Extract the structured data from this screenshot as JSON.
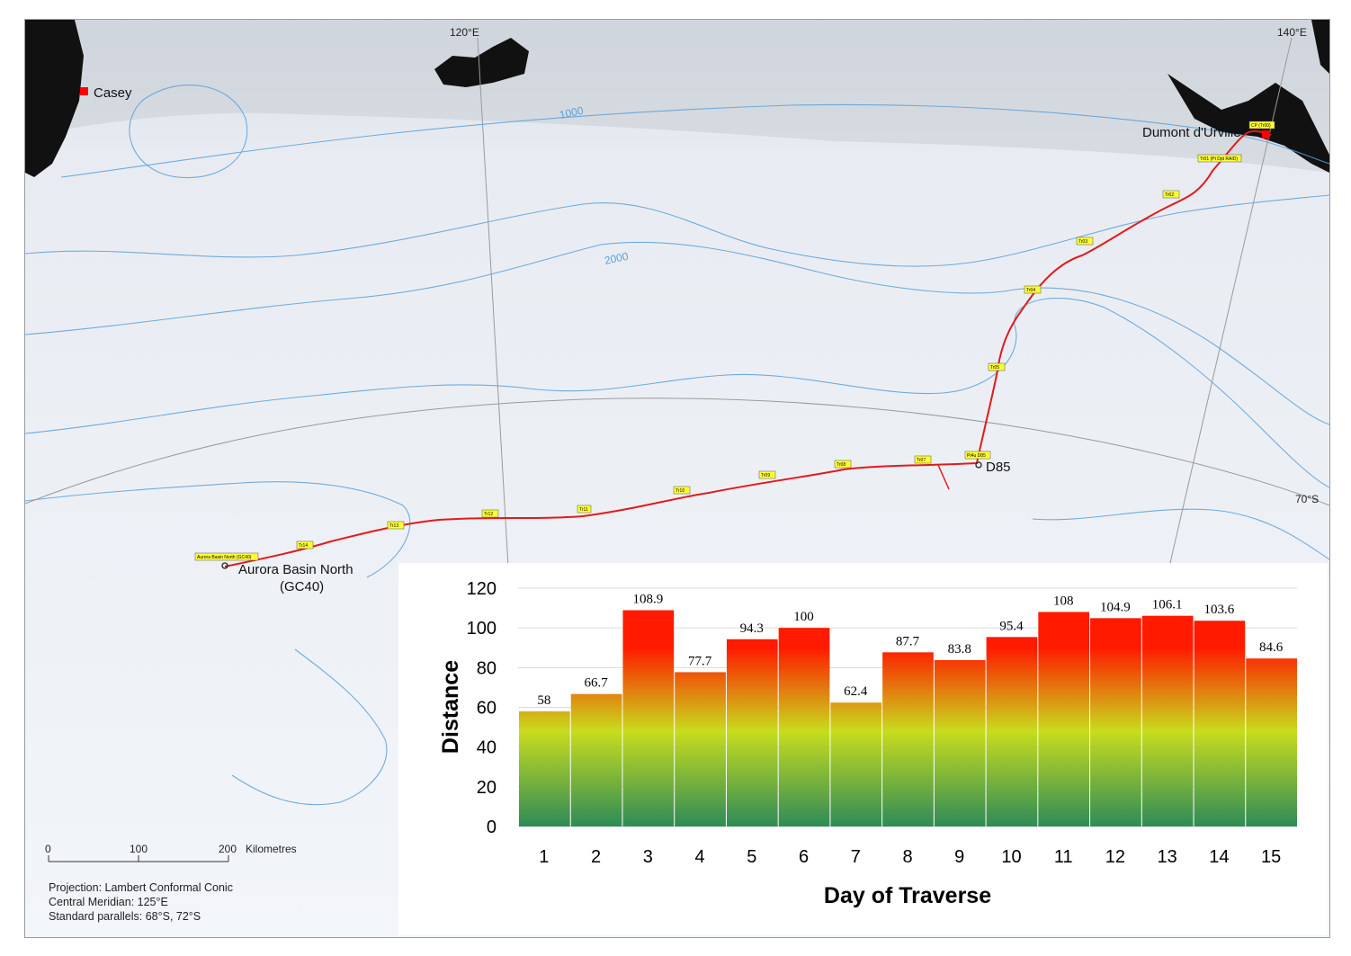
{
  "map": {
    "graticule": {
      "lon_120": "120°E",
      "lon_140": "140°E",
      "lat_70": "70°S"
    },
    "contours": {
      "c1000": "1000",
      "c2000": "2000"
    },
    "stations": {
      "casey": "Casey",
      "dumont": "Dumont d'Urville",
      "d85": "D85",
      "abn_line1": "Aurora Basin North",
      "abn_line2": "(GC40)"
    },
    "flags": [
      "CP (Tr00)",
      "Tr01 (Pt Dpt RAID)",
      "Tr02",
      "Tr03",
      "Tr04",
      "Tr05",
      "Pt4u D85",
      "Tr07",
      "Tr08",
      "Tr09",
      "Tr10",
      "Tr11",
      "Tr12",
      "Tr13",
      "Tr14",
      "Aurora Basin North (GC40)"
    ],
    "scalebar": {
      "t0": "0",
      "t100": "100",
      "t200": "200",
      "unit": "Kilometres"
    },
    "projection": {
      "line1": "Projection: Lambert Conformal Conic",
      "line2": "Central Meridian: 125°E",
      "line3": "Standard parallels: 68°S, 72°S"
    },
    "colors": {
      "route": "#e31a1c",
      "contour": "#5aa0d8",
      "rock": "#111111",
      "station": "#ff0000",
      "flag": "#ffff33"
    }
  },
  "chart_data": {
    "type": "bar",
    "categories": [
      "1",
      "2",
      "3",
      "4",
      "5",
      "6",
      "7",
      "8",
      "9",
      "10",
      "11",
      "12",
      "13",
      "14",
      "15"
    ],
    "values": [
      58,
      66.7,
      108.9,
      77.7,
      94.3,
      100,
      62.4,
      87.7,
      83.8,
      95.4,
      108,
      104.9,
      106.1,
      103.6,
      84.6
    ],
    "value_labels": [
      "58",
      "66.7",
      "108.9",
      "77.7",
      "94.3",
      "100",
      "62.4",
      "87.7",
      "83.8",
      "95.4",
      "108",
      "104.9",
      "106.1",
      "103.6",
      "84.6"
    ],
    "xlabel": "Day of Traverse",
    "ylabel": "Distance",
    "ylim": [
      0,
      120
    ],
    "yticks": [
      "0",
      "20",
      "40",
      "60",
      "80",
      "100",
      "120"
    ],
    "grid": true,
    "bar_fill": "vertical gradient green to yellow to red",
    "gradient_colors": [
      "#2e8b57",
      "#c8dc1e",
      "#ff1a00"
    ]
  }
}
